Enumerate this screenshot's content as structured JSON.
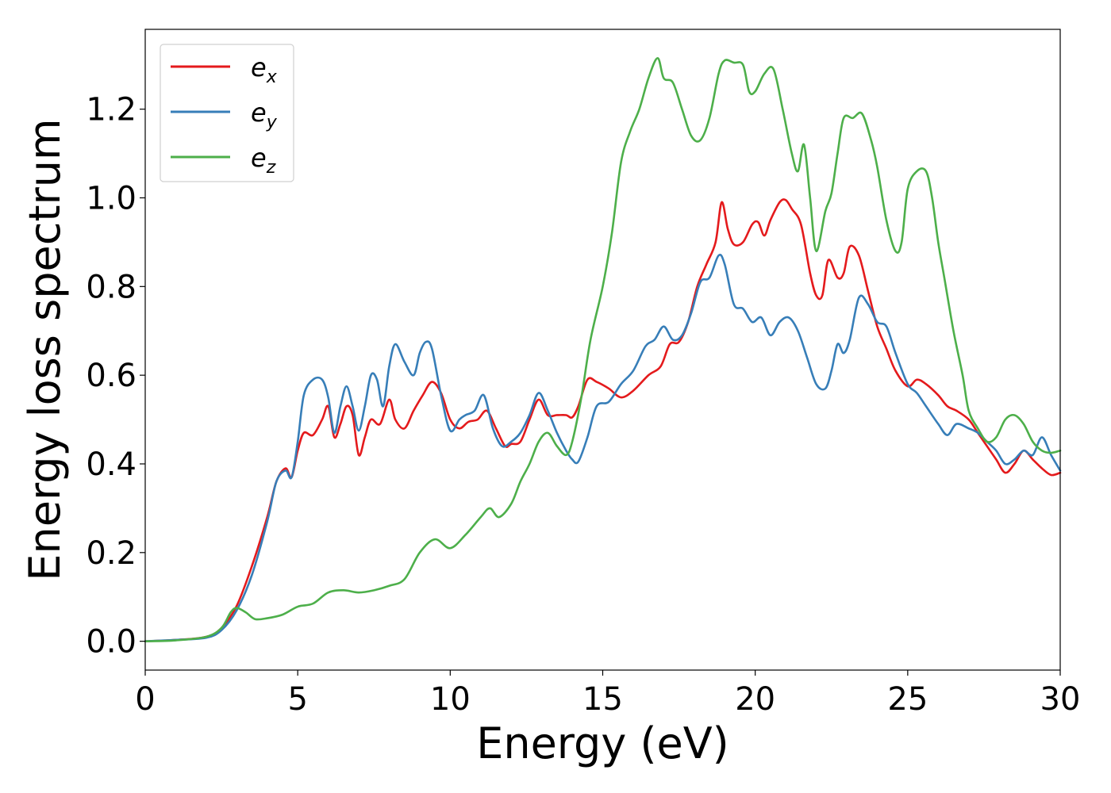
{
  "chart_data": {
    "type": "line",
    "title": "",
    "xlabel": "Energy (eV)",
    "ylabel": "Energy loss spectrum",
    "xlim": [
      0,
      30
    ],
    "ylim": [
      -0.065,
      1.38
    ],
    "xticks": [
      0,
      5,
      10,
      15,
      20,
      25,
      30
    ],
    "xtick_labels": [
      "0",
      "5",
      "10",
      "15",
      "20",
      "25",
      "30"
    ],
    "yticks": [
      0.0,
      0.2,
      0.4,
      0.6,
      0.8,
      1.0,
      1.2
    ],
    "ytick_labels": [
      "0.0",
      "0.2",
      "0.4",
      "0.6",
      "0.8",
      "1.0",
      "1.2"
    ],
    "grid": false,
    "legend_position": "top-left",
    "series": [
      {
        "name": "e",
        "subscript": "x",
        "color": "#e41a1c",
        "x": [
          0,
          1,
          2,
          2.5,
          3,
          3.5,
          4,
          4.3,
          4.6,
          4.8,
          5.0,
          5.2,
          5.5,
          5.8,
          6.0,
          6.2,
          6.4,
          6.6,
          6.8,
          7.0,
          7.2,
          7.4,
          7.7,
          8.0,
          8.2,
          8.5,
          8.8,
          9.1,
          9.4,
          9.7,
          10.0,
          10.3,
          10.6,
          10.9,
          11.2,
          11.5,
          11.8,
          12.0,
          12.3,
          12.6,
          12.9,
          13.2,
          13.5,
          13.8,
          14.0,
          14.2,
          14.5,
          14.8,
          15.2,
          15.6,
          16.0,
          16.5,
          16.9,
          17.2,
          17.5,
          17.8,
          18.1,
          18.4,
          18.7,
          18.9,
          19.1,
          19.3,
          19.6,
          19.9,
          20.1,
          20.3,
          20.5,
          20.8,
          21.0,
          21.2,
          21.5,
          21.8,
          22.0,
          22.2,
          22.4,
          22.7,
          22.9,
          23.1,
          23.4,
          23.7,
          24.0,
          24.3,
          24.6,
          25.0,
          25.3,
          25.6,
          26.0,
          26.3,
          26.6,
          27.0,
          27.3,
          27.6,
          27.9,
          28.2,
          28.5,
          28.8,
          29.1,
          29.4,
          29.7,
          30.0
        ],
        "y": [
          0.0,
          0.003,
          0.01,
          0.03,
          0.08,
          0.17,
          0.28,
          0.36,
          0.39,
          0.37,
          0.43,
          0.47,
          0.465,
          0.5,
          0.53,
          0.46,
          0.49,
          0.53,
          0.51,
          0.42,
          0.46,
          0.5,
          0.49,
          0.545,
          0.5,
          0.48,
          0.52,
          0.555,
          0.585,
          0.56,
          0.5,
          0.48,
          0.495,
          0.5,
          0.52,
          0.48,
          0.44,
          0.445,
          0.45,
          0.5,
          0.545,
          0.51,
          0.51,
          0.51,
          0.505,
          0.53,
          0.59,
          0.585,
          0.57,
          0.55,
          0.565,
          0.6,
          0.62,
          0.67,
          0.675,
          0.72,
          0.8,
          0.85,
          0.9,
          0.99,
          0.93,
          0.895,
          0.9,
          0.94,
          0.945,
          0.915,
          0.95,
          0.99,
          0.995,
          0.975,
          0.94,
          0.83,
          0.78,
          0.78,
          0.86,
          0.82,
          0.83,
          0.89,
          0.87,
          0.79,
          0.71,
          0.66,
          0.61,
          0.575,
          0.59,
          0.58,
          0.555,
          0.53,
          0.52,
          0.5,
          0.47,
          0.44,
          0.41,
          0.38,
          0.4,
          0.43,
          0.41,
          0.39,
          0.375,
          0.38
        ]
      },
      {
        "name": "e",
        "subscript": "y",
        "color": "#377eb8",
        "x": [
          0,
          1,
          2,
          2.5,
          3,
          3.5,
          4,
          4.3,
          4.6,
          4.8,
          5.0,
          5.2,
          5.5,
          5.8,
          6.0,
          6.2,
          6.4,
          6.6,
          6.8,
          7.0,
          7.2,
          7.4,
          7.6,
          7.8,
          8.0,
          8.2,
          8.5,
          8.8,
          9.0,
          9.2,
          9.4,
          9.7,
          10.0,
          10.3,
          10.5,
          10.8,
          11.1,
          11.4,
          11.7,
          12.0,
          12.3,
          12.6,
          12.9,
          13.2,
          13.5,
          13.8,
          14.0,
          14.2,
          14.5,
          14.8,
          15.2,
          15.6,
          16.0,
          16.4,
          16.7,
          17.0,
          17.3,
          17.6,
          17.9,
          18.2,
          18.5,
          18.8,
          19.0,
          19.3,
          19.6,
          19.9,
          20.2,
          20.5,
          20.8,
          21.1,
          21.4,
          21.7,
          22.0,
          22.3,
          22.5,
          22.7,
          22.9,
          23.1,
          23.4,
          23.7,
          24.0,
          24.3,
          24.6,
          25.0,
          25.3,
          25.6,
          26.0,
          26.3,
          26.6,
          27.0,
          27.3,
          27.6,
          27.9,
          28.2,
          28.5,
          28.8,
          29.1,
          29.4,
          29.7,
          30.0
        ],
        "y": [
          0.0,
          0.003,
          0.008,
          0.025,
          0.07,
          0.15,
          0.27,
          0.36,
          0.385,
          0.37,
          0.45,
          0.555,
          0.59,
          0.59,
          0.55,
          0.47,
          0.53,
          0.575,
          0.53,
          0.475,
          0.53,
          0.6,
          0.59,
          0.53,
          0.62,
          0.67,
          0.63,
          0.6,
          0.65,
          0.675,
          0.66,
          0.555,
          0.475,
          0.5,
          0.51,
          0.52,
          0.555,
          0.48,
          0.44,
          0.45,
          0.47,
          0.51,
          0.56,
          0.52,
          0.47,
          0.43,
          0.41,
          0.405,
          0.46,
          0.53,
          0.54,
          0.58,
          0.61,
          0.665,
          0.68,
          0.71,
          0.68,
          0.69,
          0.74,
          0.81,
          0.82,
          0.87,
          0.85,
          0.76,
          0.75,
          0.72,
          0.73,
          0.69,
          0.72,
          0.73,
          0.7,
          0.64,
          0.58,
          0.57,
          0.61,
          0.67,
          0.65,
          0.68,
          0.775,
          0.76,
          0.72,
          0.71,
          0.65,
          0.58,
          0.56,
          0.53,
          0.49,
          0.465,
          0.49,
          0.48,
          0.47,
          0.45,
          0.43,
          0.4,
          0.41,
          0.43,
          0.42,
          0.46,
          0.42,
          0.385
        ]
      },
      {
        "name": "e",
        "subscript": "z",
        "color": "#4daf4a",
        "x": [
          0,
          1,
          2,
          2.5,
          2.8,
          3.0,
          3.3,
          3.6,
          4.0,
          4.5,
          5.0,
          5.5,
          6.0,
          6.5,
          7.0,
          7.5,
          8.0,
          8.5,
          9.0,
          9.5,
          10.0,
          10.5,
          11.0,
          11.3,
          11.6,
          12.0,
          12.3,
          12.6,
          12.9,
          13.2,
          13.5,
          13.8,
          14.0,
          14.3,
          14.6,
          15.0,
          15.3,
          15.6,
          15.9,
          16.2,
          16.5,
          16.8,
          17.0,
          17.3,
          17.6,
          17.9,
          18.2,
          18.5,
          18.8,
          19.0,
          19.3,
          19.6,
          19.8,
          20.0,
          20.3,
          20.6,
          20.9,
          21.2,
          21.4,
          21.6,
          21.8,
          22.0,
          22.3,
          22.5,
          22.7,
          22.9,
          23.2,
          23.5,
          23.8,
          24.0,
          24.3,
          24.6,
          24.8,
          25.0,
          25.3,
          25.6,
          25.8,
          26.0,
          26.2,
          26.5,
          26.8,
          27.0,
          27.3,
          27.6,
          27.9,
          28.2,
          28.5,
          28.8,
          29.1,
          29.4,
          29.7,
          30.0
        ],
        "y": [
          0.0,
          0.002,
          0.01,
          0.03,
          0.065,
          0.075,
          0.065,
          0.05,
          0.052,
          0.06,
          0.078,
          0.085,
          0.11,
          0.115,
          0.11,
          0.115,
          0.125,
          0.14,
          0.2,
          0.23,
          0.21,
          0.24,
          0.28,
          0.3,
          0.28,
          0.31,
          0.36,
          0.4,
          0.45,
          0.47,
          0.44,
          0.42,
          0.45,
          0.55,
          0.68,
          0.8,
          0.92,
          1.08,
          1.15,
          1.2,
          1.27,
          1.315,
          1.27,
          1.26,
          1.2,
          1.14,
          1.13,
          1.18,
          1.28,
          1.31,
          1.305,
          1.3,
          1.24,
          1.24,
          1.28,
          1.29,
          1.2,
          1.1,
          1.06,
          1.12,
          1.0,
          0.88,
          0.97,
          1.01,
          1.1,
          1.18,
          1.18,
          1.19,
          1.13,
          1.07,
          0.95,
          0.88,
          0.9,
          1.02,
          1.06,
          1.06,
          1.0,
          0.9,
          0.82,
          0.7,
          0.6,
          0.52,
          0.48,
          0.45,
          0.46,
          0.5,
          0.51,
          0.49,
          0.45,
          0.43,
          0.425,
          0.43
        ]
      }
    ]
  }
}
